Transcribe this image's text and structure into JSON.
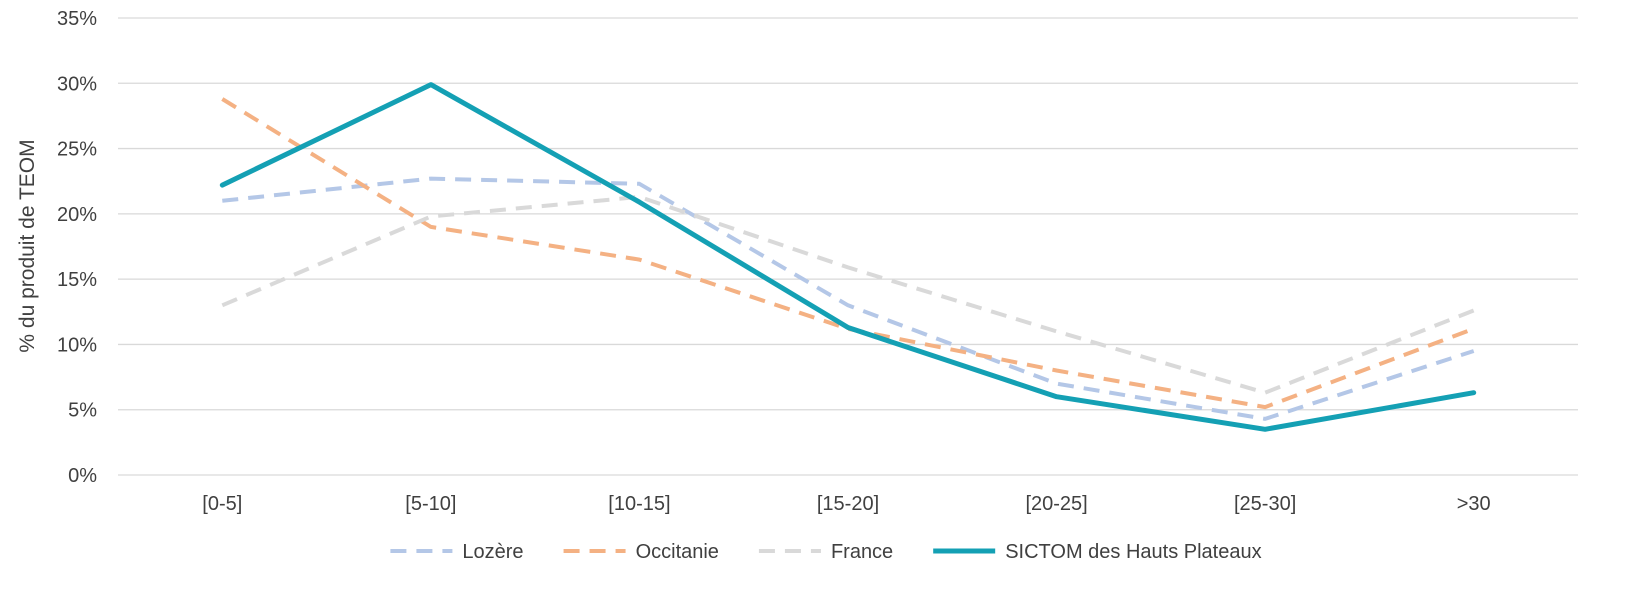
{
  "chart_data": {
    "type": "line",
    "title": "",
    "xlabel": "",
    "ylabel": "% du produit de TEOM",
    "categories": [
      "[0-5]",
      "[5-10]",
      "[10-15]",
      "[15-20]",
      "[20-25]",
      "[25-30]",
      ">30"
    ],
    "ylim": [
      0,
      35
    ],
    "yticks": [
      "0%",
      "5%",
      "10%",
      "15%",
      "20%",
      "25%",
      "30%",
      "35%"
    ],
    "grid": true,
    "legend_position": "bottom",
    "series": [
      {
        "name": "Lozère",
        "color": "#b4c7e7",
        "style": "dashed",
        "values": [
          21.0,
          22.7,
          22.3,
          13.0,
          7.0,
          4.3,
          9.5
        ]
      },
      {
        "name": "Occitanie",
        "color": "#f4b183",
        "style": "dashed",
        "values": [
          28.8,
          19.0,
          16.5,
          11.2,
          8.0,
          5.2,
          11.2
        ]
      },
      {
        "name": "France",
        "color": "#d9d9d9",
        "style": "dashed",
        "values": [
          13.0,
          19.8,
          21.3,
          15.9,
          11.0,
          6.3,
          12.6
        ]
      },
      {
        "name": "SICTOM des Hauts Plateaux",
        "color": "#14a0b4",
        "style": "solid",
        "values": [
          22.2,
          29.9,
          20.9,
          11.3,
          6.0,
          3.5,
          6.3
        ]
      }
    ]
  }
}
